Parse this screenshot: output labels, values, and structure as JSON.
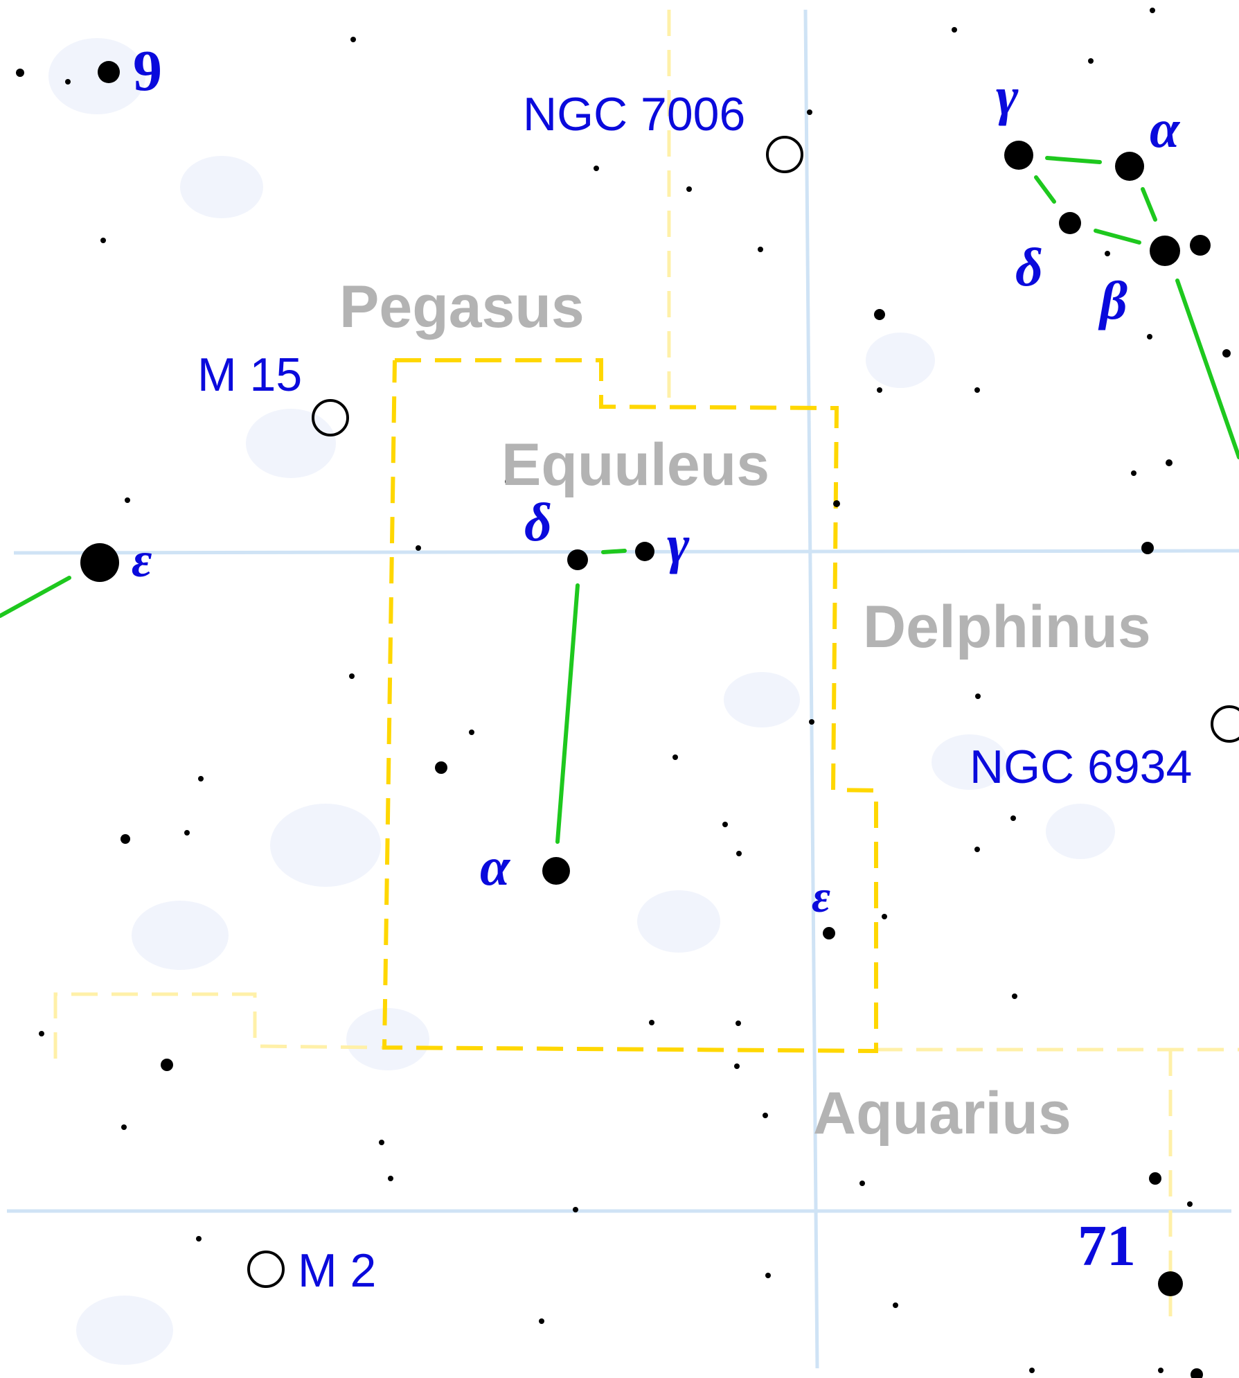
{
  "constellations": {
    "pegasus": "Pegasus",
    "equuleus": "Equuleus",
    "delphinus": "Delphinus",
    "aquarius": "Aquarius"
  },
  "deep_sky": {
    "ngc7006": "NGC 7006",
    "m15": "M 15",
    "ngc6934": "NGC 6934",
    "m2": "M 2"
  },
  "stars": {
    "peg_9": "9",
    "peg_epsilon": "ε",
    "equ_delta": "δ",
    "equ_gamma": "γ",
    "equ_alpha": "α",
    "equ_epsilon": "ε",
    "del_gamma": "γ",
    "del_alpha": "α",
    "del_delta": "δ",
    "del_beta": "β",
    "aqr_71": "71"
  },
  "colors": {
    "background": "#ffffff",
    "grid": "#cfe3f5",
    "boundary_main": "#ffd700",
    "boundary_other": "#fff0a8",
    "stick_figure": "#1ec81e",
    "labels": "#0a0adc",
    "constellation_names": "#b3b3b3",
    "star": "#000000"
  }
}
